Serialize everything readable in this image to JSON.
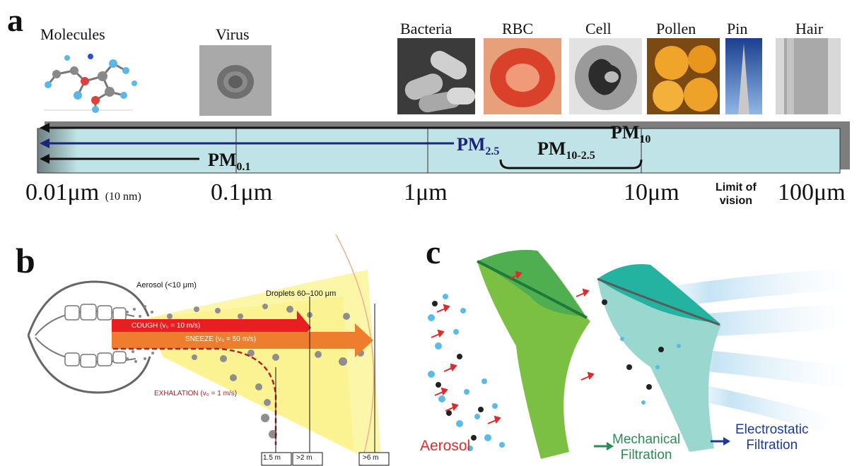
{
  "panel_a": {
    "letter": "a",
    "labels": {
      "molecules": "Molecules",
      "virus": "Virus",
      "bacteria": "Bacteria",
      "rbc": "RBC",
      "cell": "Cell",
      "pollen": "Pollen",
      "pin": "Pin",
      "hair": "Hair"
    },
    "ticks": {
      "t1": "0.01",
      "t1_unit": "μm",
      "t1_note": "(10 nm)",
      "t2": "0.1",
      "t2_unit": "μm",
      "t3": "1",
      "t3_unit": "μm",
      "t4": "10",
      "t4_unit": "μm",
      "t5": "100",
      "t5_unit": "μm",
      "limit_line1": "Limit of",
      "limit_line2": "vision"
    },
    "pm": {
      "pm10": "PM",
      "pm10_sub": "10",
      "pm25": "PM",
      "pm25_sub": "2.5",
      "pm1025": "PM",
      "pm1025_sub": "10-2.5",
      "pm01": "PM",
      "pm01_sub": "0.1"
    }
  },
  "panel_b": {
    "letter": "b",
    "aerosol": "Aerosol (<10 μm)",
    "droplets": "Droplets 60–100 μm",
    "cough": "COUGH (v₀ = 10 m/s)",
    "sneeze": "SNEEZE (v₀ = 50 m/s)",
    "exhalation": "EXHALATION (v₀ = 1 m/s)",
    "d1": "1.5 m",
    "d2": ">2 m",
    "d3": ">6 m"
  },
  "panel_c": {
    "letter": "c",
    "aerosol": "Aerosol",
    "mech1": "Mechanical",
    "mech2": "Filtration",
    "elec1": "Electrostatic",
    "elec2": "Filtration"
  },
  "colors": {
    "scale_bar": "#bfe3e6",
    "pm25": "#1a237e",
    "cough": "#e62020",
    "sneeze": "#ef7d2e",
    "exhalation": "#b3202a",
    "mech_green": "#2e8b57",
    "elec_blue": "#1a3a9e",
    "aerosol_red": "#e02b2b"
  }
}
